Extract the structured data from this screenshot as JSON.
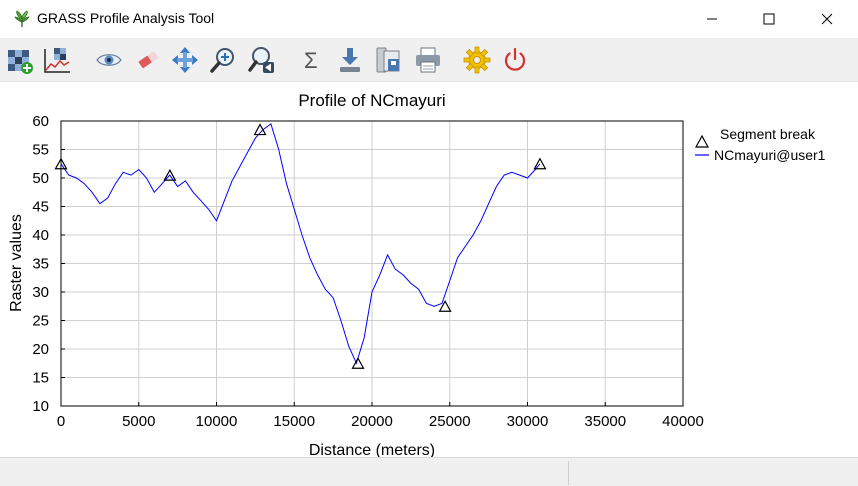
{
  "window": {
    "title": "GRASS Profile Analysis Tool",
    "icon": "grass-leaf-icon",
    "controls": [
      "minimize-icon",
      "maximize-icon",
      "close-icon"
    ]
  },
  "toolbar": {
    "tools": [
      {
        "name": "add-raster-button",
        "icon": "add-raster-icon"
      },
      {
        "name": "draw-profile-button",
        "icon": "profile-chart-icon"
      },
      {
        "name": "display-button",
        "icon": "eye-icon"
      },
      {
        "name": "erase-button",
        "icon": "eraser-icon"
      },
      {
        "name": "pan-button",
        "icon": "pan-arrows-icon"
      },
      {
        "name": "zoom-in-button",
        "icon": "zoom-in-icon"
      },
      {
        "name": "zoom-back-button",
        "icon": "zoom-back-icon"
      },
      {
        "name": "statistics-button",
        "icon": "sigma-icon"
      },
      {
        "name": "save-button",
        "icon": "download-icon"
      },
      {
        "name": "save-image-button",
        "icon": "save-image-icon"
      },
      {
        "name": "print-button",
        "icon": "printer-icon"
      },
      {
        "name": "settings-button",
        "icon": "gear-icon"
      },
      {
        "name": "quit-button",
        "icon": "power-icon"
      }
    ]
  },
  "chart_data": {
    "type": "line",
    "title": "Profile of NCmayuri",
    "xlabel": "Distance (meters)",
    "ylabel": "Raster values",
    "xlim": [
      0,
      40000
    ],
    "ylim": [
      10,
      60
    ],
    "xticks": [
      "0",
      "5000",
      "10000",
      "15000",
      "20000",
      "25000",
      "30000",
      "35000",
      "40000"
    ],
    "yticks": [
      "10",
      "15",
      "20",
      "25",
      "30",
      "35",
      "40",
      "45",
      "50",
      "55",
      "60"
    ],
    "grid": true,
    "legend_position": "right",
    "colors": {
      "line": "#0000ff",
      "marker": "#000000"
    },
    "series": [
      {
        "name": "NCmayuri@user1",
        "x": [
          0,
          500,
          1000,
          1500,
          2000,
          2500,
          3000,
          3500,
          4000,
          4500,
          5000,
          5500,
          6000,
          6500,
          7000,
          7500,
          8000,
          8500,
          9000,
          9500,
          10000,
          10500,
          11000,
          11500,
          12000,
          12500,
          13000,
          13500,
          14000,
          14500,
          15000,
          15500,
          16000,
          16500,
          17000,
          17500,
          18000,
          18500,
          19000,
          19500,
          20000,
          20500,
          21000,
          21500,
          22000,
          22500,
          23000,
          23500,
          24000,
          24500,
          25000,
          25500,
          26000,
          26500,
          27000,
          27500,
          28000,
          28500,
          29000,
          29500,
          30000,
          30500,
          30800
        ],
        "values": [
          52.5,
          50.5,
          50,
          49,
          47.5,
          45.5,
          46.5,
          49,
          51,
          50.5,
          51.5,
          50,
          47.5,
          49,
          50.5,
          48.5,
          49.5,
          47.5,
          46,
          44.5,
          42.5,
          46,
          49.5,
          52,
          54.5,
          57,
          58.5,
          59.5,
          55,
          49,
          44.5,
          40,
          36,
          33,
          30.5,
          29,
          25,
          20.5,
          17.5,
          22,
          30,
          33,
          36.5,
          34,
          33,
          31.5,
          30.5,
          28,
          27.5,
          28,
          32,
          36,
          38,
          40,
          42.5,
          45.5,
          48.5,
          50.5,
          51,
          50.5,
          50,
          51.5,
          52.5
        ]
      }
    ],
    "segment_breaks": {
      "name": "Segment break",
      "x": [
        0,
        7000,
        12800,
        19100,
        24700,
        30800
      ],
      "y": [
        52.5,
        50.5,
        58.5,
        17.5,
        27.5,
        52.5
      ]
    }
  }
}
